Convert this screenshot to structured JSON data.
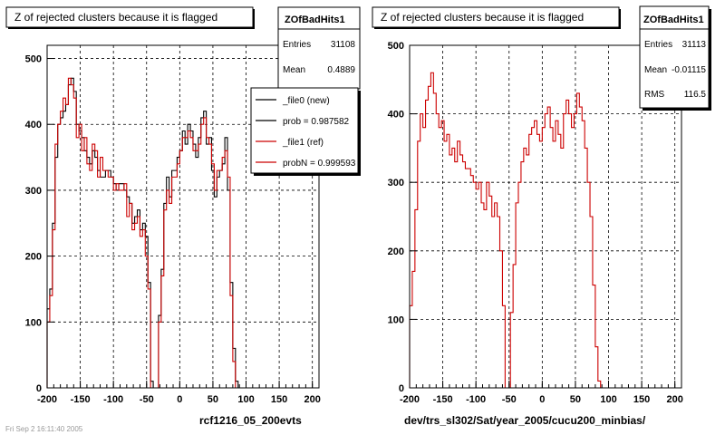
{
  "left_pad": {
    "title": "Z of rejected clusters  because it is flagged",
    "stats_name": "ZOfBadHits1",
    "stats": [
      {
        "label": "Entries",
        "value": "31108"
      },
      {
        "label": "Mean",
        "value": "0.4889"
      }
    ],
    "legend": [
      {
        "label": "_file0 (new)",
        "color": "#000000"
      },
      {
        "label": "prob = 0.987582",
        "color": "#000000"
      },
      {
        "label": "_file1 (ref)",
        "color": "#cc0000"
      },
      {
        "label": "probN = 0.999593",
        "color": "#cc0000"
      }
    ],
    "xlabel": "rcf1216_05_200evts",
    "date_text": "Fri Sep  2 16:11:40 2005"
  },
  "right_pad": {
    "title": "Z of rejected clusters  because it is flagged",
    "stats_name": "ZOfBadHits1",
    "stats": [
      {
        "label": "Entries",
        "value": "31113"
      },
      {
        "label": "Mean",
        "value": "-0.01115"
      },
      {
        "label": "RMS",
        "value": "116.5"
      }
    ],
    "xlabel": "dev/trs_sl302/Sat/year_2005/cucu200_minbias/"
  },
  "chart_data": [
    {
      "type": "histogram",
      "title": "Z of rejected clusters  because it is flagged",
      "xlabel": "rcf1216_05_200evts",
      "xlim": [
        -200,
        210
      ],
      "ylim": [
        0,
        520
      ],
      "xticks": [
        -200,
        -150,
        -100,
        -50,
        0,
        50,
        100,
        150,
        200
      ],
      "yticks": [
        0,
        100,
        200,
        300,
        400,
        500
      ],
      "grid": true,
      "legend_position": "top-right",
      "bin_start": -200,
      "bin_width": 4,
      "series": [
        {
          "name": "_file0 (new)",
          "color": "#000000",
          "values": [
            120,
            150,
            250,
            350,
            400,
            410,
            420,
            430,
            460,
            470,
            450,
            400,
            390,
            380,
            360,
            350,
            340,
            360,
            350,
            330,
            320,
            320,
            330,
            330,
            320,
            310,
            300,
            310,
            310,
            300,
            290,
            280,
            250,
            260,
            270,
            240,
            250,
            230,
            160,
            10,
            0,
            0,
            110,
            180,
            280,
            320,
            290,
            330,
            330,
            350,
            360,
            390,
            370,
            400,
            390,
            370,
            350,
            380,
            410,
            420,
            370,
            380,
            330,
            290,
            320,
            330,
            340,
            380,
            300,
            160,
            60,
            10,
            0,
            0,
            0,
            0,
            0,
            0,
            0,
            0,
            0,
            0,
            0
          ]
        },
        {
          "name": "_file1 (ref)",
          "color": "#cc0000",
          "values": [
            100,
            140,
            240,
            370,
            400,
            420,
            440,
            430,
            470,
            460,
            440,
            380,
            400,
            360,
            380,
            340,
            330,
            370,
            360,
            320,
            350,
            330,
            330,
            320,
            320,
            300,
            310,
            300,
            300,
            310,
            260,
            280,
            240,
            250,
            260,
            230,
            240,
            200,
            150,
            0,
            0,
            0,
            100,
            170,
            270,
            300,
            280,
            320,
            320,
            340,
            360,
            380,
            380,
            390,
            380,
            360,
            360,
            370,
            400,
            410,
            380,
            370,
            340,
            300,
            330,
            330,
            350,
            360,
            320,
            140,
            40,
            0,
            0,
            0,
            0,
            0,
            0,
            0,
            0,
            0,
            0,
            0,
            0
          ]
        }
      ]
    },
    {
      "type": "histogram",
      "title": "Z of rejected clusters  because it is flagged",
      "xlabel": "dev/trs_sl302/Sat/year_2005/cucu200_minbias/",
      "xlim": [
        -200,
        210
      ],
      "ylim": [
        0,
        500
      ],
      "xticks": [
        -200,
        -150,
        -100,
        -50,
        0,
        50,
        100,
        150,
        200
      ],
      "yticks": [
        0,
        100,
        200,
        300,
        400,
        500
      ],
      "grid": true,
      "bin_start": -200,
      "bin_width": 4,
      "series": [
        {
          "name": "_file1 (ref)",
          "color": "#cc0000",
          "values": [
            120,
            170,
            260,
            360,
            400,
            380,
            420,
            440,
            460,
            430,
            400,
            380,
            390,
            360,
            370,
            340,
            350,
            330,
            360,
            340,
            330,
            320,
            320,
            310,
            300,
            290,
            300,
            270,
            260,
            300,
            280,
            250,
            270,
            250,
            200,
            120,
            0,
            0,
            110,
            180,
            270,
            300,
            330,
            350,
            340,
            370,
            380,
            390,
            370,
            360,
            380,
            400,
            410,
            380,
            360,
            390,
            370,
            350,
            400,
            420,
            400,
            380,
            400,
            430,
            410,
            390,
            350,
            300,
            250,
            150,
            60,
            10,
            0,
            0,
            0,
            0,
            0,
            0,
            0,
            0,
            0,
            0,
            0
          ]
        }
      ]
    }
  ]
}
